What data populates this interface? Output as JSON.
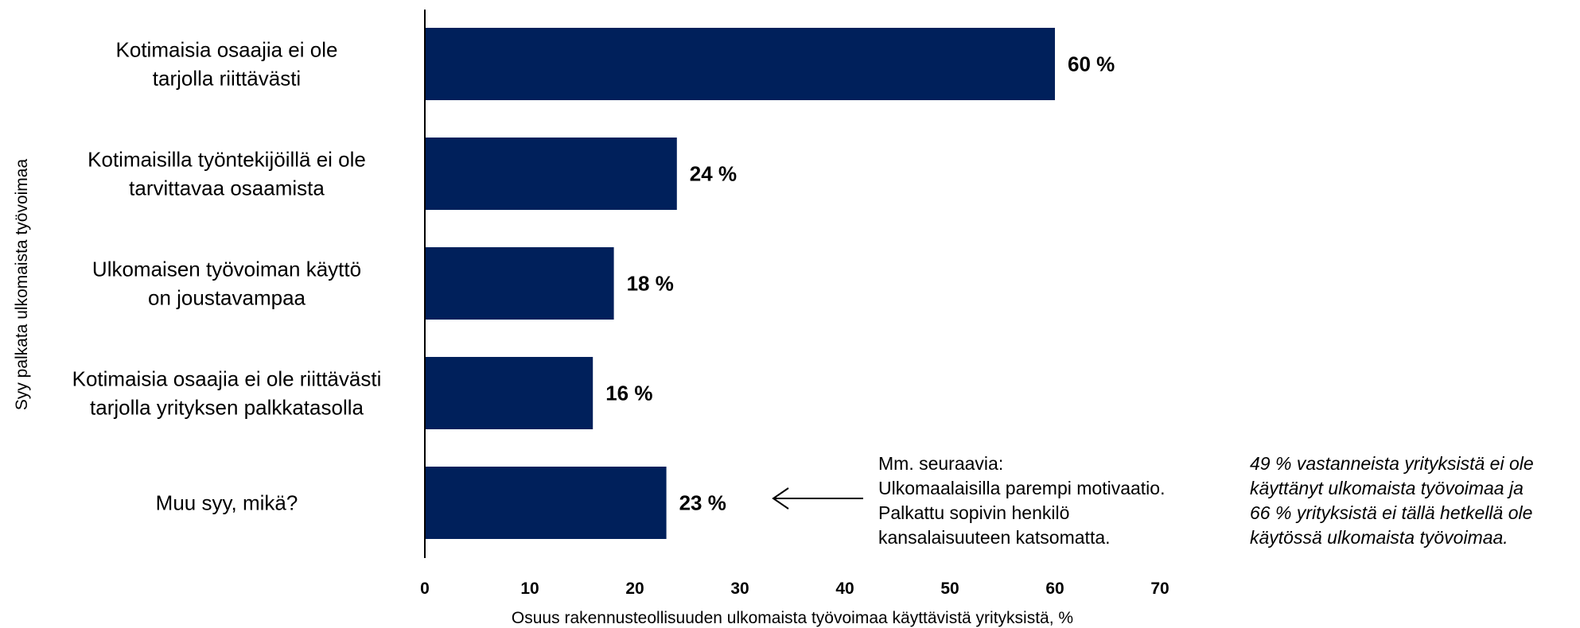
{
  "chart_data": {
    "type": "bar",
    "orientation": "horizontal",
    "categories": [
      [
        "Kotimaisia osaajia ei ole",
        "tarjolla riittävästi"
      ],
      [
        "Kotimaisilla työntekijöillä ei ole",
        "tarvittavaa osaamista"
      ],
      [
        "Ulkomaisen työvoiman käyttö",
        "on joustavampaa"
      ],
      [
        "Kotimaisia osaajia ei ole riittävästi",
        "tarjolla yrityksen palkkatasolla"
      ],
      [
        "Muu syy, mikä?"
      ]
    ],
    "values": [
      60,
      24,
      18,
      16,
      23
    ],
    "value_labels": [
      "60 %",
      "24 %",
      "18 %",
      "16 %",
      "23 %"
    ],
    "xlim": [
      0,
      70
    ],
    "xticks": [
      0,
      10,
      20,
      30,
      40,
      50,
      60,
      70
    ],
    "xlabel": "Osuus rakennusteollisuuden ulkomaista työvoimaa käyttävistä yrityksistä, %",
    "ylabel": "Syy palkata ulkomaista työvoimaa",
    "bar_color": "#00205B",
    "grid": false,
    "legend": "none"
  },
  "annotation": {
    "lines": [
      "Mm. seuraavia:",
      "Ulkomaalaisilla parempi motivaatio.",
      "Palkattu sopivin henkilö",
      "kansalaisuuteen katsomatta."
    ]
  },
  "side_note": {
    "lines": [
      "49 % vastanneista yrityksistä ei ole",
      "käyttänyt ulkomaista työvoimaa ja",
      "66 % yrityksistä ei tällä hetkellä ole",
      "käytössä ulkomaista työvoimaa."
    ]
  }
}
